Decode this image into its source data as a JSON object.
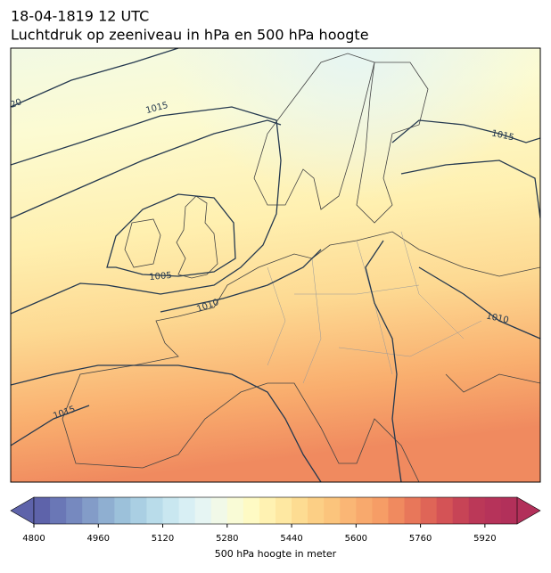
{
  "title": "18-04-1819 12 UTC",
  "subtitle": "Luchtdruk op zeeniveau in hPa en 500 hPa hoogte",
  "contour_labels": [
    "20",
    "1015",
    "1015",
    "1005",
    "1010",
    "1010",
    "1015"
  ],
  "colorbar": {
    "label": "500 hPa hoogte in meter",
    "lim": [
      4800,
      6000
    ],
    "ticks": [
      4800,
      4960,
      5120,
      5280,
      5440,
      5600,
      5760,
      5920
    ],
    "colors": [
      "#5e63aa",
      "#6a77b6",
      "#7689bf",
      "#839cc8",
      "#8fafd1",
      "#9cc1da",
      "#aacfe3",
      "#b9dcea",
      "#c9e7f0",
      "#d8eff4",
      "#e6f5f3",
      "#f1f9e8",
      "#f9fbd6",
      "#fefac4",
      "#fff2b2",
      "#fee8a2",
      "#fddc92",
      "#fccf85",
      "#fbc47c",
      "#fab675",
      "#f8a96d",
      "#f69d66",
      "#f08a5f",
      "#e8775a",
      "#df6557",
      "#d45356",
      "#c74456",
      "#bb3858",
      "#b6335a",
      "#b2305a"
    ]
  }
}
